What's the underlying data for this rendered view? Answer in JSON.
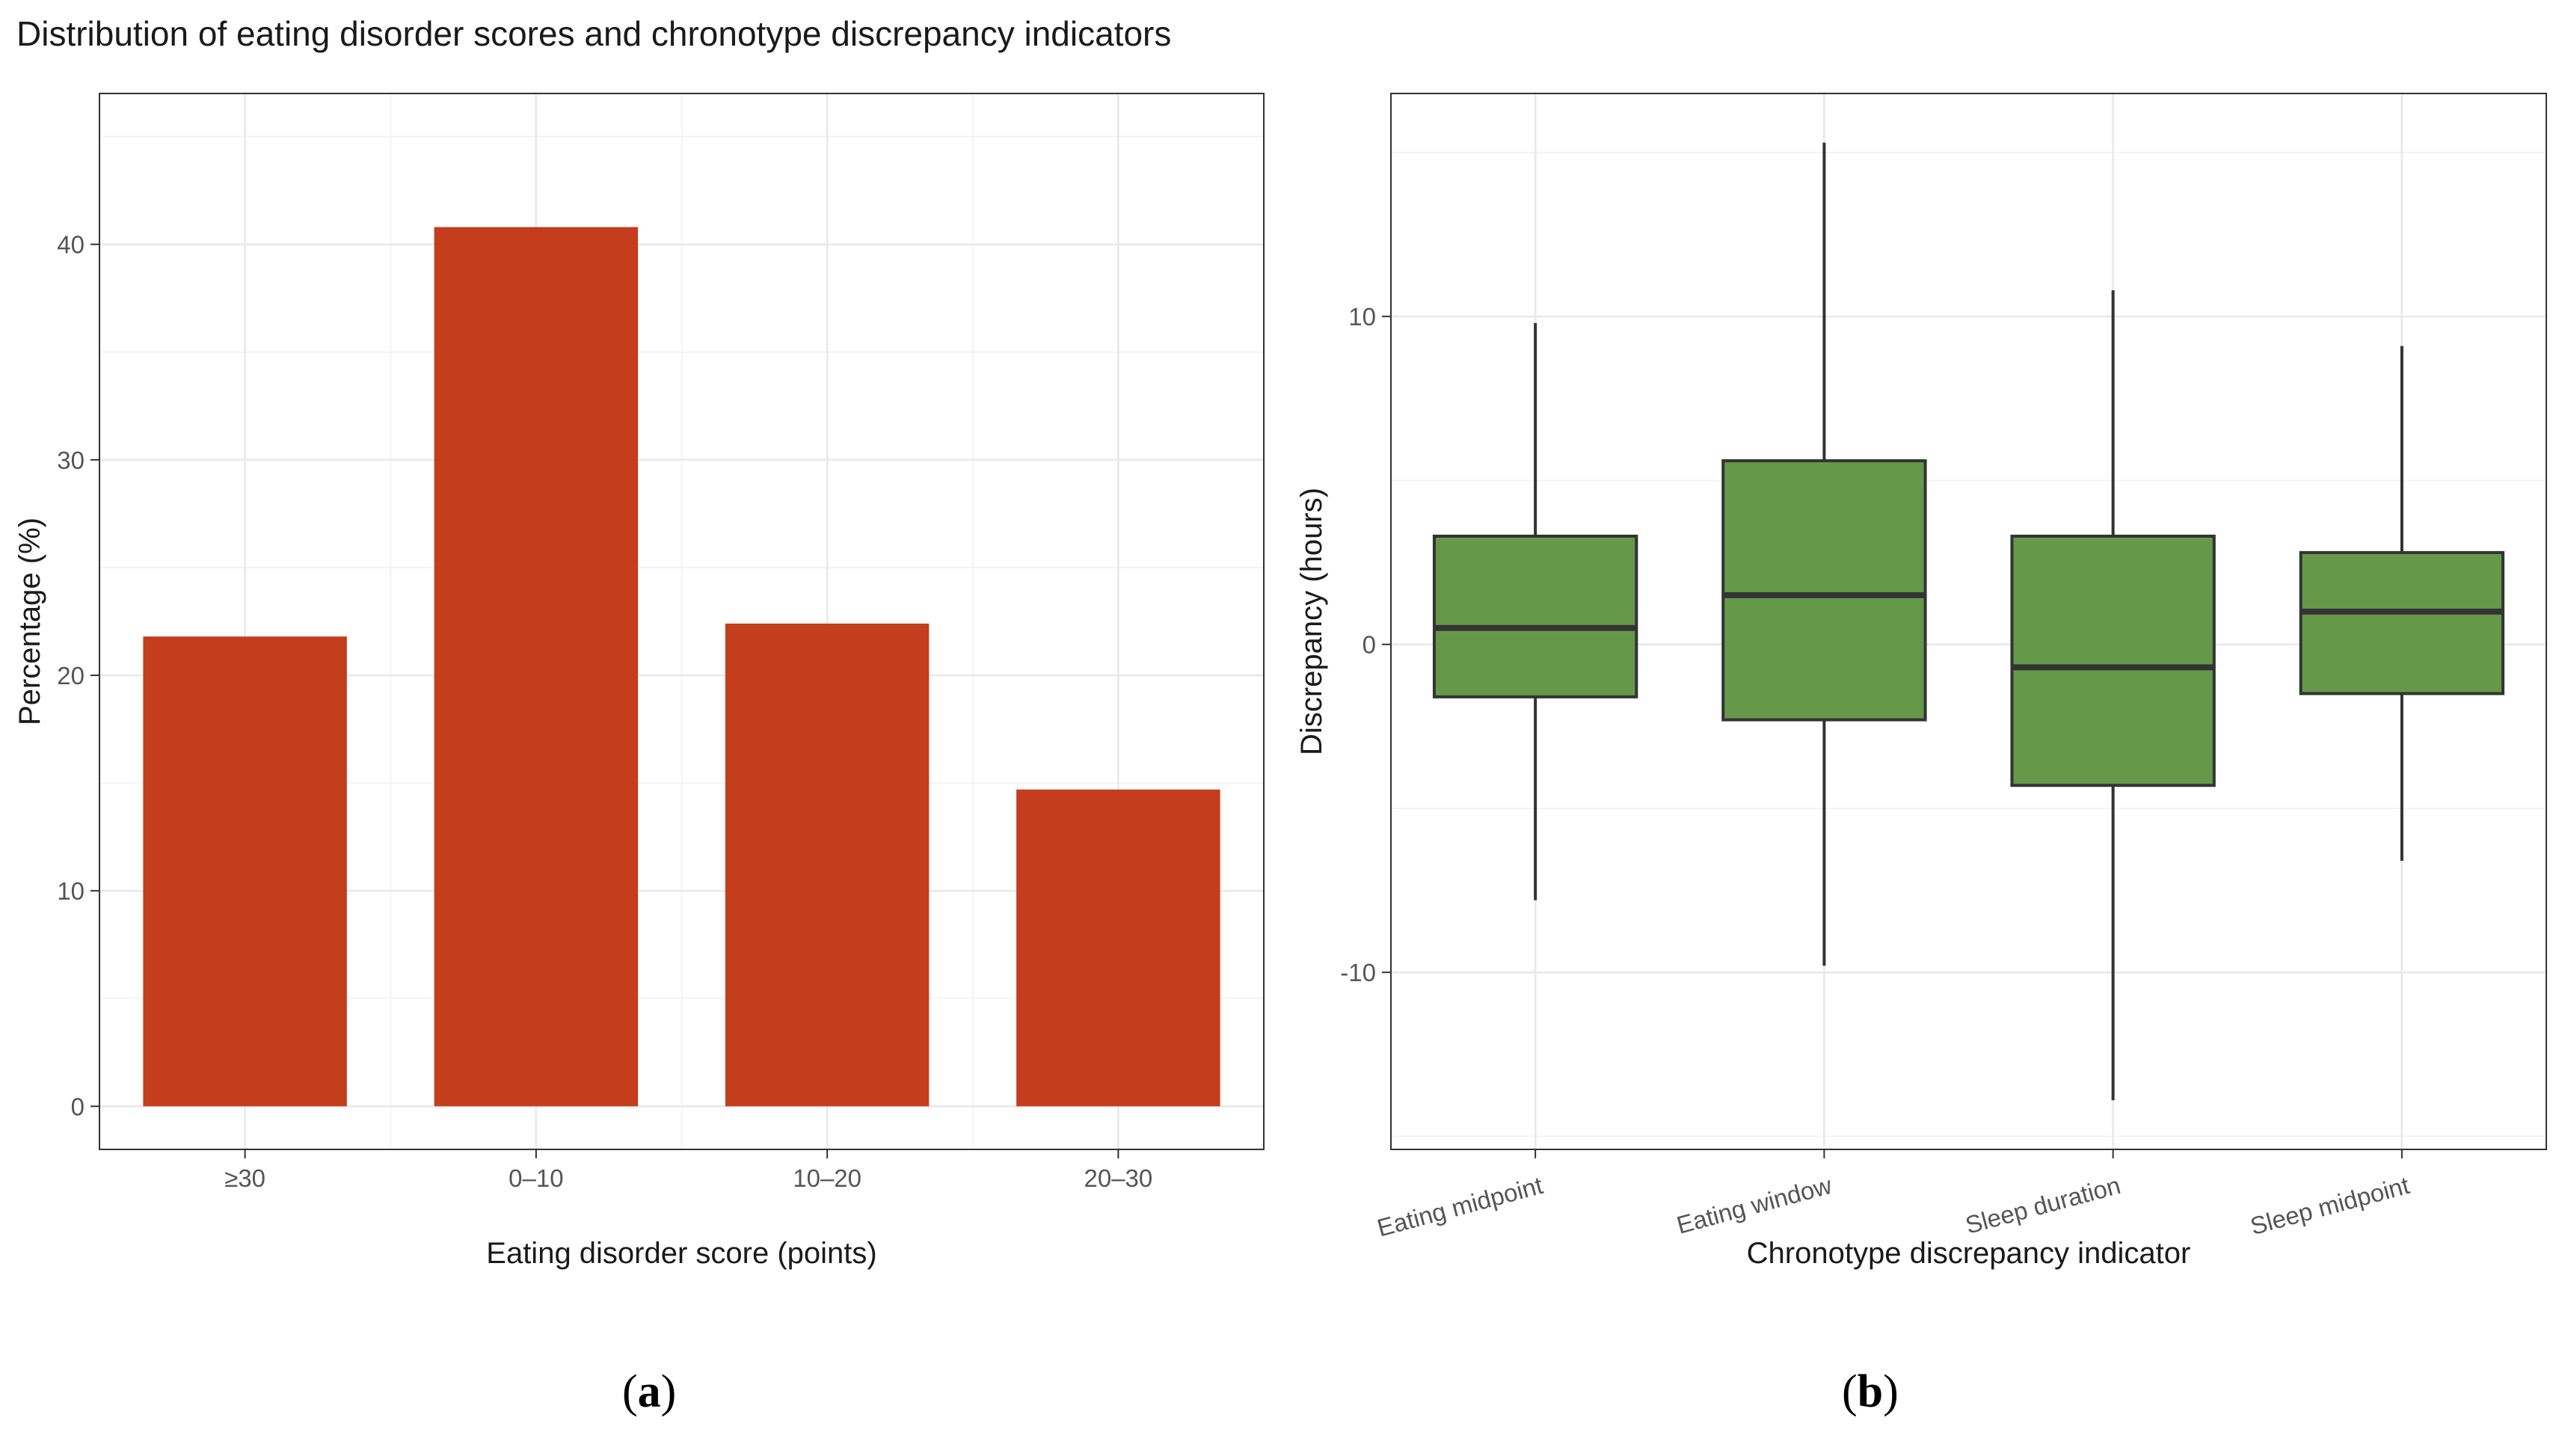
{
  "figure": {
    "title": "Distribution of eating disorder scores and chronotype discrepancy indicators",
    "panel_a_label": "a",
    "panel_b_label": "b"
  },
  "chart_data": [
    {
      "type": "bar",
      "title": "",
      "categories": [
        "≥30",
        "0–10",
        "10–20",
        "20–30"
      ],
      "values": [
        21.8,
        40.8,
        22.4,
        14.7
      ],
      "xlabel": "Eating disorder score (points)",
      "ylabel": "Percentage (%)",
      "ylim": [
        -2,
        47
      ],
      "yticks": [
        0,
        10,
        20,
        30,
        40
      ],
      "grid": true,
      "legend": "none",
      "color": "#c43d1d"
    },
    {
      "type": "box",
      "title": "",
      "categories": [
        "Eating midpoint",
        "Eating window",
        "Sleep duration",
        "Sleep midpoint"
      ],
      "boxes": [
        {
          "whisker_low": -7.8,
          "q1": -1.6,
          "median": 0.5,
          "q3": 3.3,
          "whisker_high": 9.8
        },
        {
          "whisker_low": -9.8,
          "q1": -2.3,
          "median": 1.5,
          "q3": 5.6,
          "whisker_high": 15.3
        },
        {
          "whisker_low": -13.9,
          "q1": -4.3,
          "median": -0.7,
          "q3": 3.3,
          "whisker_high": 10.8
        },
        {
          "whisker_low": -6.6,
          "q1": -1.5,
          "median": 1.0,
          "q3": 2.8,
          "whisker_high": 9.1
        }
      ],
      "xlabel": "Chronotype discrepancy indicator",
      "ylabel": "Discrepancy (hours)",
      "ylim": [
        -15.4,
        16.8
      ],
      "yticks": [
        -10,
        0,
        10
      ],
      "grid": true,
      "legend": "none",
      "color": "#66984a"
    }
  ]
}
